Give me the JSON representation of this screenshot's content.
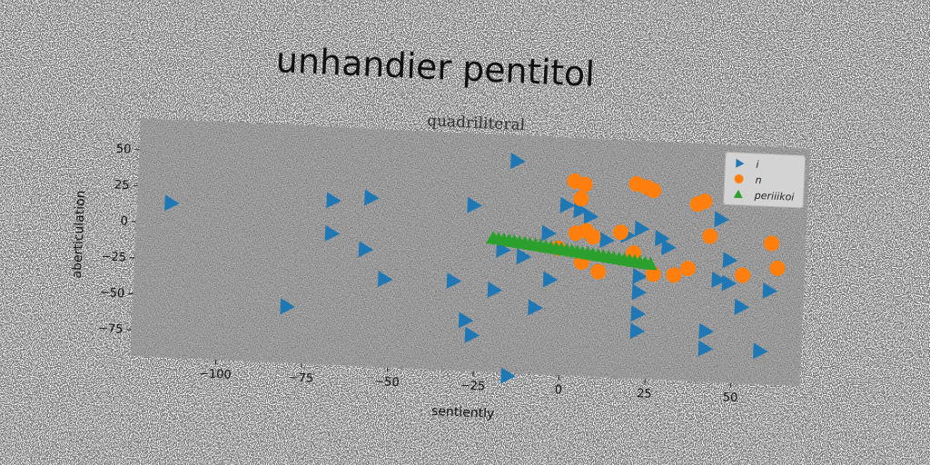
{
  "page_title": "unhandier pentitol",
  "chart_data": {
    "type": "scatter",
    "title": "quadriliteral",
    "xlabel": "sentiently",
    "ylabel": "aberticulation",
    "xlim": [
      -125,
      70
    ],
    "ylim": [
      -93,
      72
    ],
    "xticks": [
      -100,
      -75,
      -50,
      -25,
      0,
      25,
      50
    ],
    "yticks": [
      50,
      25,
      0,
      -25,
      -50,
      -75
    ],
    "xtick_labels": [
      "−100",
      "−75",
      "−50",
      "−25",
      "0",
      "25",
      "50"
    ],
    "ytick_labels": [
      "50",
      "25",
      "0",
      "−25",
      "−50",
      "−75"
    ],
    "legend_position": "top-right",
    "grid": false,
    "plot_background": "#808080",
    "series": [
      {
        "name": "i",
        "marker": "triangle-right",
        "color": "#1f77b4",
        "points": [
          [
            -115,
            14
          ],
          [
            -68,
            21
          ],
          [
            -57,
            24
          ],
          [
            -68,
            -2
          ],
          [
            -58,
            -12
          ],
          [
            -52,
            -32
          ],
          [
            -80,
            -54
          ],
          [
            -27,
            22
          ],
          [
            -32,
            -31
          ],
          [
            -28,
            -58
          ],
          [
            -26,
            -68
          ],
          [
            -20,
            -36
          ],
          [
            -15,
            54
          ],
          [
            -18,
            -8
          ],
          [
            -12,
            -12
          ],
          [
            -5,
            5
          ],
          [
            0,
            25
          ],
          [
            4,
            22
          ],
          [
            7,
            18
          ],
          [
            -4,
            -27
          ],
          [
            -8,
            -47
          ],
          [
            -15,
            -95
          ],
          [
            12,
            2
          ],
          [
            18,
            6
          ],
          [
            22,
            11
          ],
          [
            28,
            5
          ],
          [
            30,
            -1
          ],
          [
            22,
            -22
          ],
          [
            22,
            -33
          ],
          [
            22,
            -48
          ],
          [
            22,
            -60
          ],
          [
            48,
            -8
          ],
          [
            45,
            -22
          ],
          [
            48,
            -24
          ],
          [
            52,
            -40
          ],
          [
            60,
            -28
          ],
          [
            58,
            -70
          ],
          [
            42,
            -58
          ],
          [
            42,
            -70
          ],
          [
            45,
            20
          ]
        ]
      },
      {
        "name": "n",
        "marker": "circle",
        "color": "#ff7f0e",
        "points": [
          [
            2,
            42
          ],
          [
            5,
            40
          ],
          [
            4,
            30
          ],
          [
            20,
            42
          ],
          [
            23,
            40
          ],
          [
            25,
            38
          ],
          [
            40,
            32
          ],
          [
            38,
            30
          ],
          [
            42,
            8
          ],
          [
            60,
            5
          ],
          [
            62,
            -12
          ],
          [
            52,
            -18
          ],
          [
            36,
            -15
          ],
          [
            32,
            -20
          ],
          [
            26,
            -20
          ],
          [
            16,
            8
          ],
          [
            20,
            -6
          ],
          [
            6,
            8
          ],
          [
            3,
            6
          ],
          [
            8,
            4
          ],
          [
            -2,
            -5
          ],
          [
            5,
            -14
          ],
          [
            10,
            -20
          ]
        ]
      },
      {
        "name": "periiikoi",
        "marker": "triangle-up",
        "color": "#2ca02c",
        "line": [
          [
            -21,
            0
          ],
          [
            25,
            -13
          ]
        ]
      }
    ]
  }
}
